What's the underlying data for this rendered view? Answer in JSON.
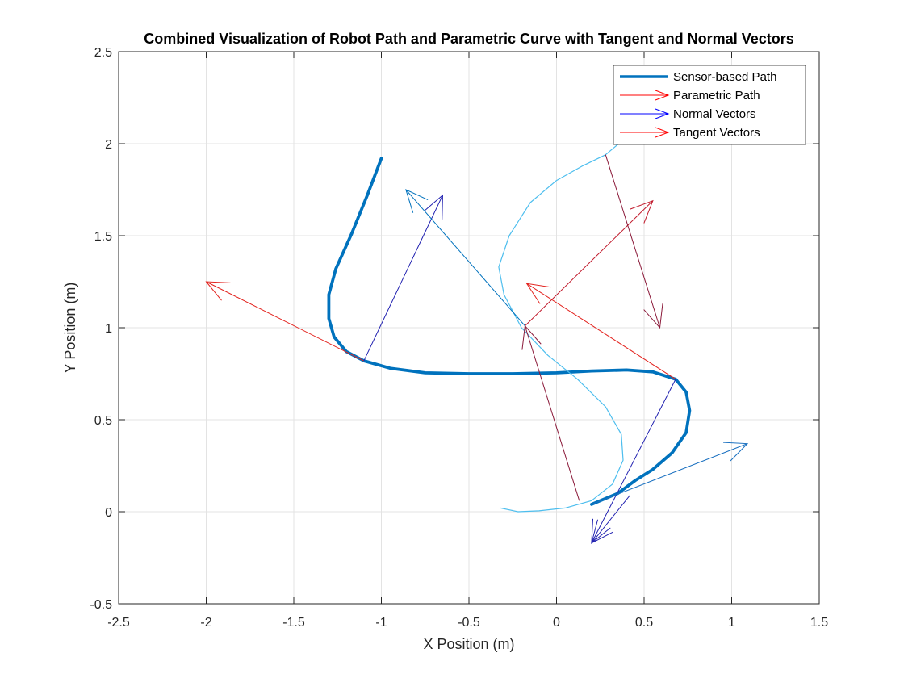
{
  "chart_data": {
    "type": "line",
    "title": "Combined Visualization of Robot Path and Parametric Curve with Tangent and Normal Vectors",
    "xlabel": "X Position (m)",
    "ylabel": "Y Position (m)",
    "xlim": [
      -2.5,
      1.5
    ],
    "ylim": [
      -0.5,
      2.5
    ],
    "xticks": [
      "-2.5",
      "-2",
      "-1.5",
      "-1",
      "-0.5",
      "0",
      "0.5",
      "1",
      "1.5"
    ],
    "yticks": [
      "-0.5",
      "0",
      "0.5",
      "1",
      "1.5",
      "2",
      "2.5"
    ],
    "grid": true,
    "legend_position": "top-right",
    "legend": [
      {
        "label": "Sensor-based Path",
        "color": "#0072BD",
        "style": "thick-line"
      },
      {
        "label": "Parametric Path",
        "color": "#FF0000",
        "style": "arrow"
      },
      {
        "label": "Normal Vectors",
        "color": "#0000FF",
        "style": "arrow"
      },
      {
        "label": "Tangent Vectors",
        "color": "#FF0000",
        "style": "arrow"
      }
    ],
    "series": [
      {
        "name": "Sensor-based Path",
        "color": "#0072BD",
        "points": [
          [
            -1.0,
            1.92
          ],
          [
            -1.08,
            1.72
          ],
          [
            -1.17,
            1.51
          ],
          [
            -1.26,
            1.32
          ],
          [
            -1.3,
            1.18
          ],
          [
            -1.3,
            1.05
          ],
          [
            -1.27,
            0.95
          ],
          [
            -1.2,
            0.87
          ],
          [
            -1.1,
            0.82
          ],
          [
            -0.95,
            0.78
          ],
          [
            -0.75,
            0.755
          ],
          [
            -0.5,
            0.75
          ],
          [
            -0.25,
            0.75
          ],
          [
            0.0,
            0.755
          ],
          [
            0.2,
            0.765
          ],
          [
            0.4,
            0.77
          ],
          [
            0.55,
            0.76
          ],
          [
            0.68,
            0.72
          ],
          [
            0.74,
            0.65
          ],
          [
            0.76,
            0.55
          ],
          [
            0.74,
            0.43
          ],
          [
            0.66,
            0.32
          ],
          [
            0.55,
            0.23
          ],
          [
            0.45,
            0.17
          ],
          [
            0.35,
            0.1
          ],
          [
            0.2,
            0.04
          ]
        ]
      },
      {
        "name": "",
        "color": "#4DBEEE",
        "points": [
          [
            0.38,
            2.02
          ],
          [
            0.28,
            1.94
          ],
          [
            0.15,
            1.88
          ],
          [
            0.0,
            1.8
          ],
          [
            -0.15,
            1.68
          ],
          [
            -0.27,
            1.5
          ],
          [
            -0.33,
            1.33
          ],
          [
            -0.3,
            1.18
          ],
          [
            -0.2,
            1.0
          ],
          [
            -0.05,
            0.85
          ],
          [
            0.12,
            0.72
          ],
          [
            0.28,
            0.57
          ],
          [
            0.37,
            0.42
          ],
          [
            0.38,
            0.28
          ],
          [
            0.32,
            0.15
          ],
          [
            0.2,
            0.06
          ],
          [
            0.05,
            0.02
          ],
          [
            -0.1,
            0.005
          ],
          [
            -0.22,
            0.0
          ],
          [
            -0.32,
            0.02
          ]
        ]
      }
    ],
    "vectors": [
      {
        "x1": -1.1,
        "y1": 0.82,
        "x2": -2.0,
        "y2": 1.25,
        "color": "#E3231E"
      },
      {
        "x1": -1.1,
        "y1": 0.82,
        "x2": -0.65,
        "y2": 1.72,
        "color": "#2020B0"
      },
      {
        "x1": -0.18,
        "y1": 1.01,
        "x2": -0.86,
        "y2": 1.75,
        "color": "#0072BD"
      },
      {
        "x1": -0.18,
        "y1": 1.01,
        "x2": 0.55,
        "y2": 1.69,
        "color": "#C0182A"
      },
      {
        "x1": 0.68,
        "y1": 0.72,
        "x2": -0.17,
        "y2": 1.24,
        "color": "#E3231E"
      },
      {
        "x1": 0.68,
        "y1": 0.72,
        "x2": 0.2,
        "y2": -0.17,
        "color": "#2020B0"
      },
      {
        "x1": 0.28,
        "y1": 1.94,
        "x2": 0.59,
        "y2": 1.0,
        "color": "#8B1A3A"
      },
      {
        "x1": 0.13,
        "y1": 0.06,
        "x2": -0.18,
        "y2": 1.01,
        "color": "#8B1A3A"
      },
      {
        "x1": 0.2,
        "y1": 0.04,
        "x2": 1.09,
        "y2": 0.37,
        "color": "#1A70C0"
      },
      {
        "x1": 0.42,
        "y1": 0.09,
        "x2": 0.2,
        "y2": -0.17,
        "color": "#2020B0"
      }
    ]
  }
}
